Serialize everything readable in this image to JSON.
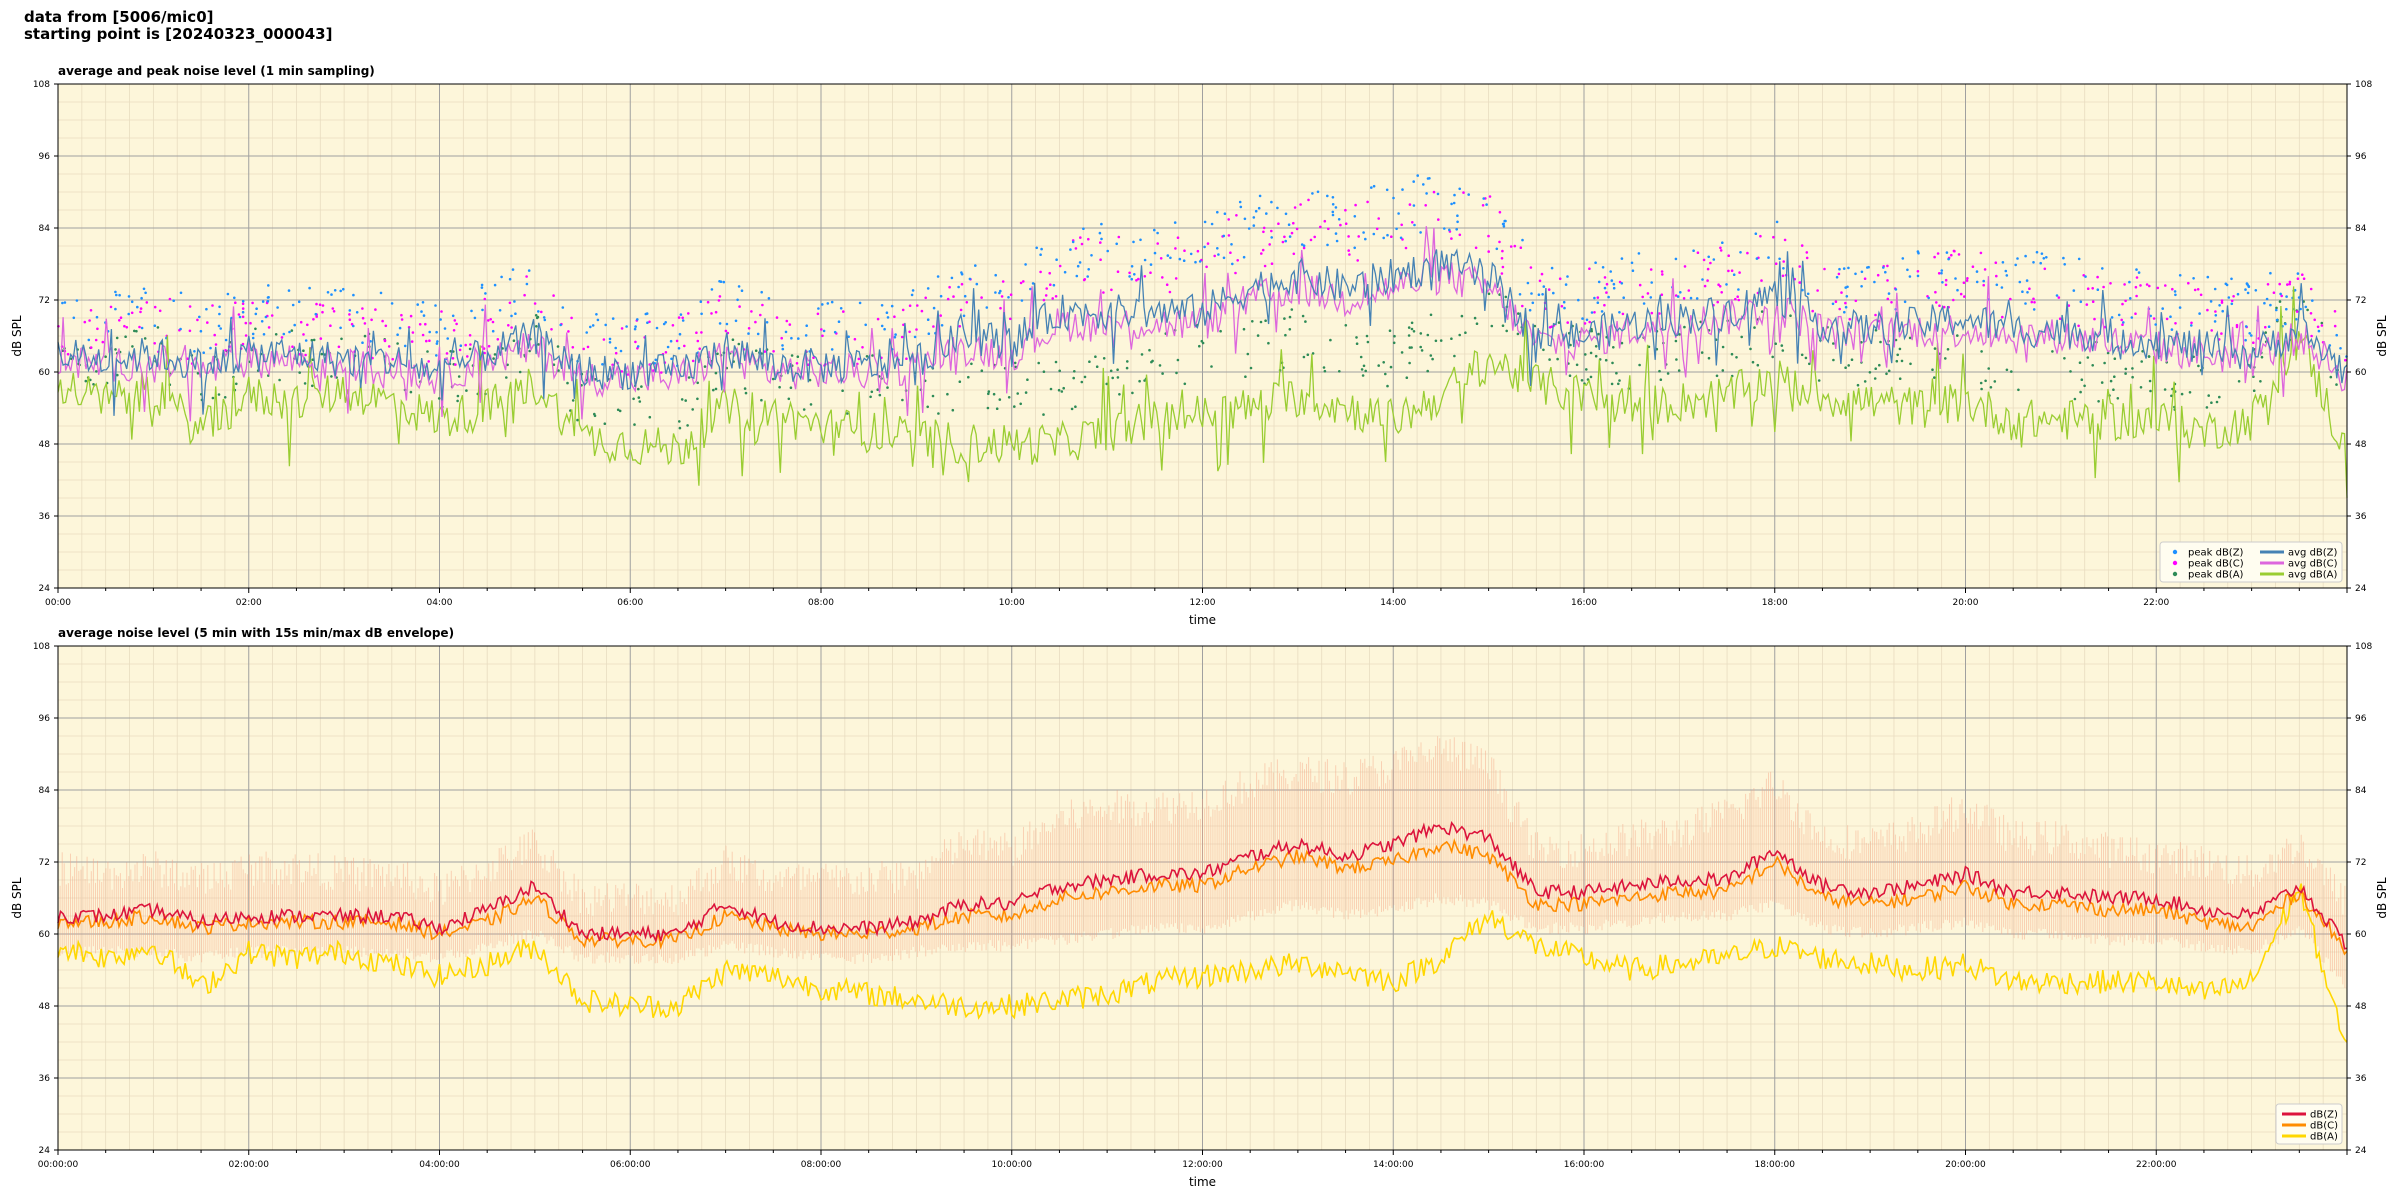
{
  "header": {
    "line1": "data from [5006/mic0]",
    "line2": "starting point is [20240323_000043]"
  },
  "colors": {
    "background": "#fdf6da",
    "grid_major": "#a0a0a0",
    "grid_minor": "#e8dcc0",
    "avg_z": "#4682b4",
    "avg_c": "#dd66dd",
    "avg_a": "#9acd32",
    "peak_z": "#1e90ff",
    "peak_c": "#ff00ff",
    "peak_a": "#2e8b57",
    "env_z": "#dc143c",
    "env_c": "#ff8c00",
    "env_a": "#ffd700",
    "envelope_fill": "#f4a582"
  },
  "chart_data": [
    {
      "type": "line",
      "title": "average and peak noise level (1 min sampling)",
      "xlabel": "time",
      "ylabel": "dB SPL",
      "xlim_hours": [
        0,
        24
      ],
      "ylim": [
        24,
        108
      ],
      "yticks": [
        "24",
        "36",
        "48",
        "60",
        "72",
        "84",
        "96",
        "108"
      ],
      "xtick_labels": [
        "00:00",
        "02:00",
        "04:00",
        "06:00",
        "08:00",
        "10:00",
        "12:00",
        "14:00",
        "16:00",
        "18:00",
        "20:00",
        "22:00"
      ],
      "grid": true,
      "legend_position": "bottom-right",
      "legend": [
        "peak dB(Z)",
        "peak dB(C)",
        "peak dB(A)",
        "avg dB(Z)",
        "avg dB(C)",
        "avg dB(A)"
      ],
      "x_hours": [
        0,
        0.5,
        1,
        1.5,
        2,
        2.5,
        3,
        3.5,
        4,
        4.5,
        5,
        5.5,
        6,
        6.5,
        7,
        7.5,
        8,
        8.5,
        9,
        9.5,
        10,
        10.5,
        11,
        11.5,
        12,
        12.5,
        13,
        13.5,
        14,
        14.5,
        15,
        15.5,
        16,
        16.5,
        17,
        17.5,
        18,
        18.5,
        19,
        19.5,
        20,
        20.5,
        21,
        21.5,
        22,
        22.5,
        23,
        23.5,
        24
      ],
      "series": [
        {
          "name": "avg dB(Z)",
          "values": [
            63,
            62,
            63,
            61,
            63,
            63,
            62,
            62,
            60,
            63,
            66,
            60,
            60,
            60,
            64,
            61,
            61,
            61,
            62,
            66,
            65,
            70,
            70,
            70,
            70,
            74,
            76,
            74,
            76,
            78,
            76,
            66,
            66,
            68,
            69,
            70,
            73,
            68,
            67,
            68,
            69,
            67,
            67,
            66,
            65,
            64,
            63,
            67,
            60
          ]
        },
        {
          "name": "avg dB(C)",
          "values": [
            62,
            61,
            62,
            60,
            62,
            62,
            61,
            61,
            59,
            62,
            64,
            59,
            59,
            59,
            63,
            60,
            60,
            60,
            61,
            64,
            63,
            68,
            68,
            68,
            68,
            72,
            74,
            72,
            74,
            76,
            74,
            65,
            65,
            67,
            68,
            69,
            71,
            67,
            66,
            67,
            67,
            66,
            66,
            65,
            64,
            63,
            62,
            66,
            59
          ]
        },
        {
          "name": "avg dB(A)",
          "values": [
            58,
            55,
            57,
            50,
            56,
            55,
            57,
            55,
            52,
            54,
            58,
            49,
            48,
            47,
            54,
            53,
            51,
            50,
            49,
            48,
            48,
            48,
            50,
            52,
            53,
            54,
            56,
            54,
            52,
            56,
            62,
            58,
            56,
            54,
            55,
            56,
            59,
            56,
            55,
            54,
            55,
            52,
            52,
            52,
            52,
            50,
            52,
            66,
            46
          ]
        },
        {
          "name": "peak dB(Z)",
          "values": [
            68,
            67,
            68,
            66,
            68,
            68,
            67,
            67,
            64,
            68,
            72,
            63,
            63,
            63,
            69,
            66,
            66,
            66,
            67,
            72,
            71,
            77,
            78,
            78,
            79,
            82,
            84,
            83,
            85,
            87,
            85,
            71,
            71,
            73,
            74,
            76,
            79,
            73,
            72,
            74,
            76,
            73,
            73,
            71,
            70,
            70,
            68,
            72,
            64
          ]
        },
        {
          "name": "peak dB(C)",
          "values": [
            66,
            65,
            66,
            64,
            66,
            66,
            65,
            65,
            63,
            66,
            70,
            62,
            62,
            62,
            67,
            64,
            64,
            64,
            65,
            70,
            69,
            75,
            76,
            76,
            77,
            80,
            82,
            81,
            83,
            85,
            83,
            70,
            70,
            72,
            73,
            74,
            77,
            72,
            71,
            72,
            74,
            71,
            71,
            70,
            69,
            68,
            67,
            71,
            63
          ]
        },
        {
          "name": "peak dB(A)",
          "values": [
            62,
            60,
            61,
            56,
            61,
            60,
            61,
            60,
            57,
            59,
            63,
            54,
            53,
            52,
            59,
            58,
            56,
            56,
            55,
            55,
            55,
            56,
            58,
            60,
            61,
            62,
            64,
            62,
            60,
            64,
            67,
            63,
            61,
            60,
            61,
            62,
            65,
            61,
            60,
            60,
            61,
            58,
            58,
            58,
            57,
            56,
            58,
            70,
            52
          ]
        }
      ]
    },
    {
      "type": "line",
      "title": "average noise level (5 min with 15s min/max dB envelope)",
      "xlabel": "time",
      "ylabel": "dB SPL",
      "xlim_hours": [
        0,
        24
      ],
      "ylim": [
        24,
        108
      ],
      "yticks": [
        "24",
        "36",
        "48",
        "60",
        "72",
        "84",
        "96",
        "108"
      ],
      "xtick_labels": [
        "00:00:00",
        "02:00:00",
        "04:00:00",
        "06:00:00",
        "08:00:00",
        "10:00:00",
        "12:00:00",
        "14:00:00",
        "16:00:00",
        "18:00:00",
        "20:00:00",
        "22:00:00"
      ],
      "grid": true,
      "legend_position": "bottom-right",
      "legend": [
        "dB(Z)",
        "dB(C)",
        "dB(A)"
      ],
      "x_hours": [
        0,
        0.5,
        1,
        1.5,
        2,
        2.5,
        3,
        3.5,
        4,
        4.5,
        5,
        5.5,
        6,
        6.5,
        7,
        7.5,
        8,
        8.5,
        9,
        9.5,
        10,
        10.5,
        11,
        11.5,
        12,
        12.5,
        13,
        13.5,
        14,
        14.5,
        15,
        15.5,
        16,
        16.5,
        17,
        17.5,
        18,
        18.5,
        19,
        19.5,
        20,
        20.5,
        21,
        21.5,
        22,
        22.5,
        23,
        23.5,
        24
      ],
      "series": [
        {
          "name": "dB(Z)",
          "values": [
            63,
            63,
            64,
            62,
            63,
            63,
            63,
            63,
            61,
            64,
            68,
            60,
            60,
            60,
            65,
            62,
            61,
            61,
            62,
            65,
            65,
            68,
            69,
            70,
            70,
            73,
            75,
            73,
            75,
            78,
            76,
            67,
            67,
            68,
            69,
            69,
            74,
            68,
            67,
            68,
            70,
            67,
            67,
            66,
            66,
            64,
            63,
            68,
            58
          ]
        },
        {
          "name": "dB(C)",
          "values": [
            62,
            62,
            63,
            61,
            62,
            62,
            62,
            62,
            60,
            62,
            66,
            59,
            59,
            59,
            63,
            61,
            60,
            60,
            61,
            63,
            63,
            66,
            67,
            68,
            68,
            71,
            73,
            71,
            72,
            75,
            73,
            65,
            65,
            66,
            67,
            67,
            72,
            66,
            65,
            66,
            68,
            65,
            65,
            64,
            64,
            62,
            61,
            67,
            57
          ]
        },
        {
          "name": "dB(A)",
          "values": [
            58,
            56,
            58,
            51,
            57,
            56,
            57,
            55,
            53,
            55,
            58,
            49,
            48,
            48,
            54,
            53,
            51,
            50,
            49,
            48,
            48,
            49,
            50,
            52,
            53,
            54,
            55,
            54,
            52,
            56,
            63,
            58,
            56,
            54,
            55,
            56,
            58,
            56,
            55,
            54,
            55,
            52,
            52,
            52,
            52,
            50,
            52,
            68,
            40
          ]
        },
        {
          "name": "max envelope",
          "values": [
            68,
            67,
            68,
            66,
            68,
            68,
            67,
            67,
            64,
            68,
            72,
            63,
            63,
            63,
            69,
            66,
            66,
            66,
            67,
            72,
            71,
            76,
            78,
            78,
            79,
            82,
            84,
            83,
            85,
            88,
            85,
            71,
            71,
            73,
            74,
            77,
            82,
            73,
            72,
            74,
            78,
            73,
            73,
            71,
            70,
            69,
            67,
            72,
            62
          ]
        },
        {
          "name": "min envelope",
          "values": [
            58,
            58,
            58,
            57,
            58,
            58,
            58,
            58,
            57,
            59,
            61,
            57,
            57,
            57,
            59,
            58,
            57,
            57,
            58,
            59,
            59,
            60,
            61,
            62,
            62,
            64,
            66,
            64,
            65,
            67,
            66,
            62,
            62,
            63,
            64,
            64,
            66,
            62,
            61,
            62,
            63,
            61,
            61,
            60,
            60,
            59,
            58,
            62,
            52
          ]
        }
      ]
    }
  ]
}
